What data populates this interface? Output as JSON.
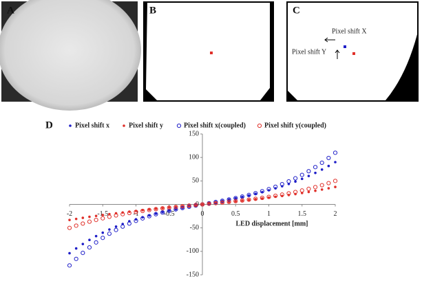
{
  "panels": [
    {
      "label": "A"
    },
    {
      "label": "B"
    },
    {
      "label": "C",
      "annotations": [
        "Pixel shift X",
        "Pixel shift Y"
      ]
    }
  ],
  "chart_data": {
    "type": "scatter",
    "label": "D",
    "x_label": "LED displacement [mm]",
    "x": [
      -2,
      -1.9,
      -1.8,
      -1.7,
      -1.6,
      -1.5,
      -1.4,
      -1.3,
      -1.2,
      -1.1,
      -1,
      -0.9,
      -0.8,
      -0.7,
      -0.6,
      -0.5,
      -0.4,
      -0.3,
      -0.2,
      -0.1,
      0,
      0.1,
      0.2,
      0.3,
      0.4,
      0.5,
      0.6,
      0.7,
      0.8,
      0.9,
      1,
      1.1,
      1.2,
      1.3,
      1.4,
      1.5,
      1.6,
      1.7,
      1.8,
      1.9,
      2
    ],
    "series": [
      {
        "name": "Pixel shift x",
        "color": "#1f1fc8",
        "marker": "filled",
        "values": [
          -104,
          -93.8,
          -84.4,
          -75.7,
          -67.6,
          -60.3,
          -53.5,
          -47.3,
          -41.7,
          -36.0,
          -31.8,
          -27.4,
          -23.5,
          -19.8,
          -16.5,
          -13.3,
          -10.4,
          -7.7,
          -5.1,
          -2.5,
          0,
          2.5,
          5.0,
          7.6,
          10.3,
          13.1,
          16.1,
          19.2,
          22.6,
          26.1,
          30,
          34.2,
          38.6,
          43.5,
          48.7,
          54.4,
          60.5,
          67.1,
          74.2,
          81.8,
          90
        ]
      },
      {
        "name": "Pixel shift y",
        "color": "#e0302a",
        "marker": "filled",
        "values": [
          -33.2,
          -30.9,
          -28.7,
          -26.5,
          -24.5,
          -22.5,
          -20.7,
          -18.9,
          -17.2,
          -15.5,
          -13.9,
          -12.4,
          -10.9,
          -9.4,
          -8.0,
          -6.6,
          -5.3,
          -3.9,
          -2.6,
          -1.3,
          0,
          1.3,
          2.6,
          3.9,
          5.3,
          6.7,
          8.1,
          9.6,
          11.1,
          12.7,
          14.4,
          16.2,
          18.0,
          20.0,
          22.0,
          24.2,
          26.5,
          29.0,
          31.6,
          34.3,
          37.2
        ]
      },
      {
        "name": "Pixel shift x(coupled)",
        "color": "#1f1fc8",
        "marker": "open",
        "values": [
          -130,
          -116.1,
          -103.3,
          -91.6,
          -81.0,
          -71.3,
          -62.4,
          -54.5,
          -47.3,
          -40.8,
          -35,
          -29.8,
          -25.1,
          -20.9,
          -17.2,
          -13.8,
          -10.6,
          -7.8,
          -5.1,
          -2.5,
          0,
          2.5,
          5.1,
          7.7,
          10.5,
          13.4,
          16.6,
          20.1,
          23.8,
          28.0,
          32.5,
          37.5,
          43.0,
          49.0,
          55.6,
          62.8,
          70.7,
          79.4,
          88.7,
          98.9,
          110
        ]
      },
      {
        "name": "Pixel shift y(coupled)",
        "color": "#e0302a",
        "marker": "open",
        "values": [
          -50,
          -45.3,
          -40.9,
          -36.8,
          -33.1,
          -29.6,
          -26.4,
          -23.5,
          -20.8,
          -18.3,
          -16.0,
          -13.9,
          -11.9,
          -10.1,
          -8.4,
          -6.9,
          -5.4,
          -4.0,
          -2.6,
          -1.3,
          0,
          1.3,
          2.6,
          4.0,
          5.4,
          6.9,
          8.4,
          10.1,
          11.9,
          13.9,
          16.0,
          18.3,
          20.8,
          23.5,
          26.4,
          29.6,
          33.1,
          36.8,
          40.9,
          45.3,
          50
        ]
      }
    ],
    "xlim": [
      -2,
      2
    ],
    "ylim": [
      -150,
      150
    ],
    "xticks": [
      -2,
      -1.5,
      -1,
      -0.5,
      0,
      0.5,
      1,
      1.5,
      2
    ],
    "yticks": [
      -150,
      -100,
      -50,
      0,
      50,
      100,
      150
    ],
    "legend": "top"
  }
}
